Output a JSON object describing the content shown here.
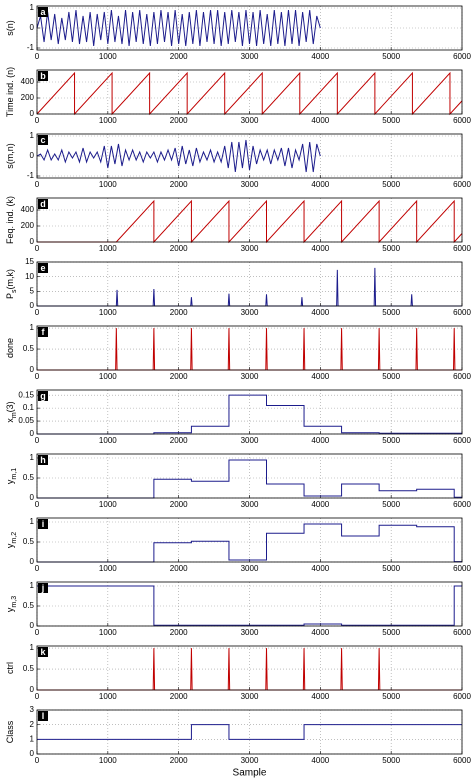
{
  "chart_data": [
    {
      "type": "line",
      "label": "a",
      "ylabel": [
        {
          "text": "s(n)"
        }
      ],
      "color": "#1c1c8c",
      "xlim": [
        0,
        6000
      ],
      "xticks": [
        0,
        1000,
        2000,
        3000,
        4000,
        5000,
        6000
      ],
      "ylim": [
        -1.1,
        1.1
      ],
      "yticks": [
        -1,
        0,
        1
      ],
      "grid": true,
      "x": [
        0,
        50,
        100,
        150,
        200,
        250,
        300,
        350,
        400,
        450,
        500,
        550,
        600,
        650,
        700,
        750,
        800,
        850,
        900,
        950,
        1000,
        1050,
        1100,
        1150,
        1200,
        1250,
        1300,
        1350,
        1400,
        1450,
        1500,
        1550,
        1600,
        1650,
        1700,
        1750,
        1800,
        1850,
        1900,
        1950,
        2000,
        2050,
        2100,
        2150,
        2200,
        2250,
        2300,
        2350,
        2400,
        2450,
        2500,
        2550,
        2600,
        2650,
        2700,
        2750,
        2800,
        2850,
        2900,
        2950,
        3000,
        3050,
        3100,
        3150,
        3200,
        3250,
        3300,
        3350,
        3400,
        3450,
        3500,
        3550,
        3600,
        3650,
        3700,
        3750,
        3800,
        3850,
        3900,
        3950,
        4000
      ],
      "values": [
        0,
        0.6,
        -0.7,
        0.8,
        -0.6,
        0.7,
        -0.8,
        0.5,
        -0.6,
        0.8,
        -0.7,
        0.9,
        -0.8,
        0.6,
        -0.7,
        0.8,
        -0.9,
        0.7,
        -0.6,
        0.8,
        -0.8,
        0.9,
        -0.7,
        0.6,
        -0.8,
        0.9,
        -0.9,
        0.8,
        -0.7,
        0.9,
        -0.8,
        0.7,
        -0.9,
        0.8,
        -0.8,
        0.9,
        -0.7,
        0.8,
        -0.9,
        0.9,
        -0.8,
        0.7,
        -0.9,
        0.8,
        -0.8,
        0.9,
        -0.9,
        0.8,
        -0.7,
        0.9,
        -0.8,
        0.9,
        -0.9,
        0.8,
        -0.8,
        0.9,
        -0.7,
        0.8,
        -0.9,
        0.9,
        -0.8,
        0.8,
        -0.9,
        0.9,
        -0.8,
        0.7,
        -0.9,
        0.9,
        -0.8,
        0.8,
        -0.9,
        0.9,
        -0.8,
        0.9,
        -0.9,
        0.8,
        -0.7,
        0.9,
        -0.8,
        0.6,
        0
      ]
    },
    {
      "type": "line",
      "label": "b",
      "ylabel": [
        {
          "text": "Time ind. (n)"
        }
      ],
      "color": "#c00000",
      "xlim": [
        0,
        6000
      ],
      "xticks": [
        0,
        1000,
        2000,
        3000,
        4000,
        5000,
        6000
      ],
      "ylim": [
        0,
        550
      ],
      "yticks": [
        0,
        200,
        400
      ],
      "grid": true,
      "x": [
        0,
        530,
        530,
        1060,
        1060,
        1590,
        1590,
        2120,
        2120,
        2650,
        2650,
        3180,
        3180,
        3710,
        3710,
        4240,
        4240,
        4770,
        4770,
        5300,
        5300,
        5830,
        5830,
        6000
      ],
      "values": [
        0,
        512,
        0,
        512,
        0,
        512,
        0,
        512,
        0,
        512,
        0,
        512,
        0,
        512,
        0,
        512,
        0,
        512,
        0,
        512,
        0,
        512,
        0,
        164
      ]
    },
    {
      "type": "line",
      "label": "c",
      "ylabel": [
        {
          "text": "s(m,n)"
        }
      ],
      "color": "#1c1c8c",
      "xlim": [
        0,
        6000
      ],
      "xticks": [
        0,
        1000,
        2000,
        3000,
        4000,
        5000,
        6000
      ],
      "ylim": [
        -1.1,
        1.1
      ],
      "yticks": [
        -1,
        0,
        1
      ],
      "grid": true,
      "x": [
        0,
        50,
        100,
        150,
        200,
        250,
        300,
        350,
        400,
        450,
        500,
        550,
        600,
        650,
        700,
        750,
        800,
        850,
        900,
        950,
        1000,
        1050,
        1100,
        1150,
        1200,
        1250,
        1300,
        1350,
        1400,
        1450,
        1500,
        1550,
        1600,
        1650,
        1700,
        1750,
        1800,
        1850,
        1900,
        1950,
        2000,
        2050,
        2100,
        2150,
        2200,
        2250,
        2300,
        2350,
        2400,
        2450,
        2500,
        2550,
        2600,
        2650,
        2700,
        2750,
        2800,
        2850,
        2900,
        2950,
        3000,
        3050,
        3100,
        3150,
        3200,
        3250,
        3300,
        3350,
        3400,
        3450,
        3500,
        3550,
        3600,
        3650,
        3700,
        3750,
        3800,
        3850,
        3900,
        3950,
        4000
      ],
      "values": [
        0,
        0.1,
        -0.2,
        0.3,
        -0.2,
        0.1,
        -0.2,
        0.3,
        -0.3,
        0.2,
        -0.1,
        0.2,
        -0.3,
        0.4,
        -0.3,
        0.2,
        -0.1,
        0.2,
        -0.3,
        0.5,
        -0.6,
        0.5,
        -0.4,
        0.6,
        -0.5,
        0.3,
        -0.2,
        0.3,
        -0.2,
        0.2,
        -0.3,
        0.2,
        -0.1,
        0.2,
        -0.3,
        0.2,
        -0.2,
        0.3,
        -0.2,
        0.4,
        -0.5,
        0.5,
        -0.4,
        0.3,
        -0.5,
        0.4,
        -0.3,
        0.2,
        -0.2,
        0.3,
        -0.3,
        0.2,
        -0.3,
        0.5,
        -0.6,
        0.7,
        -0.8,
        0.7,
        -0.6,
        0.8,
        -0.7,
        0.5,
        -0.4,
        0.3,
        -0.2,
        0.3,
        -0.4,
        0.3,
        -0.2,
        0.4,
        -0.5,
        0.4,
        -0.6,
        0.3,
        -0.2,
        0.6,
        -0.8,
        0.7,
        -0.8,
        0.6,
        0
      ]
    },
    {
      "type": "line",
      "label": "d",
      "ylabel": [
        {
          "text": "Feq. ind. (k)"
        }
      ],
      "color": "#c00000",
      "xlim": [
        0,
        6000
      ],
      "xticks": [
        0,
        1000,
        2000,
        3000,
        4000,
        5000,
        6000
      ],
      "ylim": [
        0,
        550
      ],
      "yticks": [
        0,
        200,
        400
      ],
      "grid": true,
      "x": [
        0,
        1120,
        1650,
        1650,
        2180,
        2180,
        2710,
        2710,
        3240,
        3240,
        3770,
        3770,
        4300,
        4300,
        4830,
        4830,
        5360,
        5360,
        5890,
        5890,
        6000
      ],
      "values": [
        0,
        0,
        512,
        0,
        512,
        0,
        512,
        0,
        512,
        0,
        512,
        0,
        512,
        0,
        512,
        0,
        512,
        0,
        512,
        0,
        106
      ]
    },
    {
      "type": "line",
      "label": "e",
      "ylabel": [
        {
          "text": "P"
        },
        {
          "text": "s",
          "sub": true
        },
        {
          "text": "(m,k)"
        }
      ],
      "color": "#1c1c8c",
      "xlim": [
        0,
        6000
      ],
      "xticks": [
        0,
        1000,
        2000,
        3000,
        4000,
        5000,
        6000
      ],
      "ylim": [
        0,
        15
      ],
      "yticks": [
        0,
        5,
        10,
        15
      ],
      "grid": true,
      "x": [
        0,
        1120,
        1130,
        1140,
        1640,
        1650,
        1660,
        2170,
        2180,
        2190,
        2700,
        2710,
        2720,
        3230,
        3240,
        3250,
        3730,
        3740,
        3750,
        4230,
        4240,
        4250,
        4760,
        4770,
        4780,
        5280,
        5290,
        5300,
        6000
      ],
      "values": [
        0,
        0,
        5.5,
        0,
        0,
        5.8,
        0,
        0,
        3,
        0,
        0,
        4.2,
        0,
        0,
        4,
        0,
        0,
        3,
        0,
        0,
        12.3,
        0,
        0,
        13,
        0,
        0,
        4,
        0,
        0
      ]
    },
    {
      "type": "line",
      "label": "f",
      "ylabel": [
        {
          "text": "done"
        }
      ],
      "color": "#c00000",
      "xlim": [
        0,
        6000
      ],
      "xticks": [
        0,
        1000,
        2000,
        3000,
        4000,
        5000,
        6000
      ],
      "ylim": [
        0,
        1.05
      ],
      "yticks": [
        0,
        0.5,
        1
      ],
      "grid": true,
      "x": [
        0,
        1110,
        1120,
        1130,
        1640,
        1650,
        1660,
        2170,
        2180,
        2190,
        2700,
        2710,
        2720,
        3230,
        3240,
        3250,
        3760,
        3770,
        3780,
        4290,
        4300,
        4310,
        4820,
        4830,
        4840,
        5350,
        5360,
        5370,
        5880,
        5890,
        5900,
        6000
      ],
      "values": [
        0,
        0,
        1,
        0,
        0,
        1,
        0,
        0,
        1,
        0,
        0,
        1,
        0,
        0,
        1,
        0,
        0,
        1,
        0,
        0,
        1,
        0,
        0,
        1,
        0,
        0,
        1,
        0,
        0,
        1,
        0,
        0
      ]
    },
    {
      "type": "line",
      "label": "g",
      "ylabel": [
        {
          "text": "x"
        },
        {
          "text": "m",
          "sub": true
        },
        {
          "text": "(3)"
        }
      ],
      "color": "#1c1c8c",
      "xlim": [
        0,
        6000
      ],
      "xticks": [
        0,
        1000,
        2000,
        3000,
        4000,
        5000,
        6000
      ],
      "ylim": [
        0,
        0.17
      ],
      "yticks": [
        0,
        0.05,
        0.1,
        0.15
      ],
      "grid": true,
      "x": [
        0,
        1650,
        1650,
        2180,
        2180,
        2710,
        2710,
        3240,
        3240,
        3770,
        3770,
        4300,
        4300,
        4830,
        4830,
        6000
      ],
      "values": [
        0,
        0,
        0.005,
        0.005,
        0.03,
        0.03,
        0.15,
        0.15,
        0.11,
        0.11,
        0.03,
        0.03,
        0.005,
        0.005,
        0.003,
        0.003
      ]
    },
    {
      "type": "line",
      "label": "h",
      "ylabel": [
        {
          "text": "y"
        },
        {
          "text": "m,1",
          "sub": true
        }
      ],
      "color": "#1c1c8c",
      "xlim": [
        0,
        6000
      ],
      "xticks": [
        0,
        1000,
        2000,
        3000,
        4000,
        5000,
        6000
      ],
      "ylim": [
        0,
        1.1
      ],
      "yticks": [
        0,
        0.5,
        1
      ],
      "grid": true,
      "x": [
        0,
        1650,
        1650,
        2180,
        2180,
        2710,
        2710,
        3240,
        3240,
        3770,
        3770,
        4300,
        4300,
        4830,
        4830,
        5360,
        5360,
        5890,
        5890,
        6000
      ],
      "values": [
        0,
        0,
        0.47,
        0.47,
        0.42,
        0.42,
        0.95,
        0.95,
        0.35,
        0.35,
        0.05,
        0.05,
        0.35,
        0.35,
        0.18,
        0.18,
        0.22,
        0.22,
        0.02,
        0.02
      ]
    },
    {
      "type": "line",
      "label": "i",
      "ylabel": [
        {
          "text": "y"
        },
        {
          "text": "m,2",
          "sub": true
        }
      ],
      "color": "#1c1c8c",
      "xlim": [
        0,
        6000
      ],
      "xticks": [
        0,
        1000,
        2000,
        3000,
        4000,
        5000,
        6000
      ],
      "ylim": [
        0,
        1.1
      ],
      "yticks": [
        0,
        0.5,
        1
      ],
      "grid": true,
      "x": [
        0,
        1650,
        1650,
        2180,
        2180,
        2710,
        2710,
        3240,
        3240,
        3770,
        3770,
        4300,
        4300,
        4830,
        4830,
        5360,
        5360,
        5890,
        5890,
        6000
      ],
      "values": [
        0,
        0,
        0.48,
        0.48,
        0.52,
        0.52,
        0.05,
        0.05,
        0.72,
        0.72,
        0.95,
        0.95,
        0.65,
        0.65,
        0.92,
        0.92,
        0.88,
        0.88,
        0.01,
        0.01
      ]
    },
    {
      "type": "line",
      "label": "j",
      "ylabel": [
        {
          "text": "y"
        },
        {
          "text": "m,3",
          "sub": true
        }
      ],
      "color": "#1c1c8c",
      "xlim": [
        0,
        6000
      ],
      "xticks": [
        0,
        1000,
        2000,
        3000,
        4000,
        5000,
        6000
      ],
      "ylim": [
        0,
        1.1
      ],
      "yticks": [
        0,
        0.5,
        1
      ],
      "grid": true,
      "x": [
        0,
        1650,
        1650,
        2180,
        2180,
        2710,
        2710,
        3240,
        3240,
        3770,
        3770,
        4300,
        4300,
        4830,
        4830,
        5360,
        5360,
        5890,
        5890,
        6000
      ],
      "values": [
        1,
        1,
        0.02,
        0.02,
        0.02,
        0.02,
        0.02,
        0.02,
        0.02,
        0.02,
        0.05,
        0.05,
        0.02,
        0.02,
        0.02,
        0.02,
        0.02,
        0.02,
        1,
        1
      ]
    },
    {
      "type": "line",
      "label": "k",
      "ylabel": [
        {
          "text": "ctrl"
        }
      ],
      "color": "#c00000",
      "xlim": [
        0,
        6000
      ],
      "xticks": [
        0,
        1000,
        2000,
        3000,
        4000,
        5000,
        6000
      ],
      "ylim": [
        0,
        1.05
      ],
      "yticks": [
        0,
        0.5,
        1
      ],
      "grid": true,
      "x": [
        0,
        1640,
        1650,
        1660,
        2170,
        2180,
        2190,
        2700,
        2710,
        2720,
        3230,
        3240,
        3250,
        3760,
        3770,
        3780,
        4290,
        4300,
        4310,
        4820,
        4830,
        4840,
        6000
      ],
      "values": [
        0,
        0,
        1,
        0,
        0,
        1,
        0,
        0,
        1,
        0,
        0,
        1,
        0,
        0,
        1,
        0,
        0,
        1,
        0,
        0,
        1,
        0,
        0
      ]
    },
    {
      "type": "line",
      "label": "l",
      "ylabel": [
        {
          "text": "Class"
        }
      ],
      "xlabel": "Sample",
      "color": "#1c1c8c",
      "xlim": [
        0,
        6000
      ],
      "xticks": [
        0,
        1000,
        2000,
        3000,
        4000,
        5000,
        6000
      ],
      "ylim": [
        0,
        3
      ],
      "yticks": [
        0,
        1,
        2,
        3
      ],
      "grid": true,
      "x": [
        0,
        2180,
        2180,
        2710,
        2710,
        3770,
        3770,
        6000
      ],
      "values": [
        1,
        1,
        2,
        2,
        1,
        1,
        2,
        2
      ]
    }
  ]
}
